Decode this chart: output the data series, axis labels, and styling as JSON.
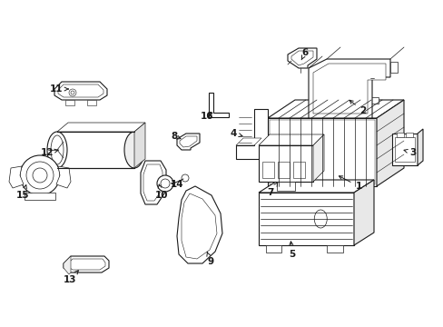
{
  "background_color": "#ffffff",
  "line_color": "#1a1a1a",
  "fig_width": 4.89,
  "fig_height": 3.6,
  "dpi": 100,
  "label_fontsize": 7.5,
  "lw": 0.8
}
